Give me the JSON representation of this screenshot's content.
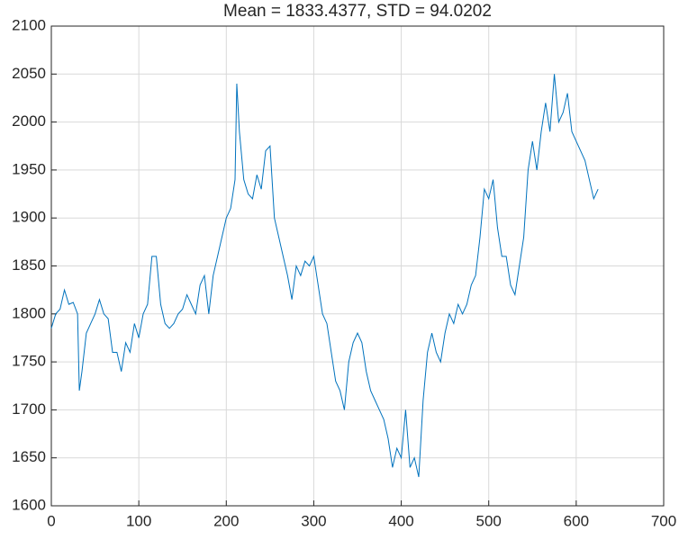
{
  "chart_data": {
    "type": "line",
    "title": "Mean = 1833.4377, STD = 94.0202",
    "x": [
      0,
      5,
      10,
      15,
      20,
      25,
      30,
      32,
      35,
      40,
      45,
      50,
      55,
      60,
      65,
      70,
      75,
      80,
      85,
      90,
      95,
      100,
      105,
      110,
      115,
      120,
      125,
      130,
      135,
      140,
      145,
      150,
      155,
      160,
      165,
      170,
      175,
      180,
      185,
      190,
      195,
      200,
      205,
      210,
      212,
      215,
      220,
      225,
      230,
      235,
      240,
      245,
      250,
      255,
      260,
      265,
      270,
      275,
      280,
      285,
      290,
      295,
      300,
      305,
      310,
      315,
      320,
      325,
      330,
      335,
      340,
      345,
      350,
      355,
      360,
      365,
      370,
      375,
      380,
      385,
      390,
      395,
      400,
      405,
      410,
      415,
      420,
      425,
      430,
      435,
      440,
      445,
      450,
      455,
      460,
      465,
      470,
      475,
      480,
      485,
      490,
      495,
      500,
      505,
      510,
      515,
      520,
      525,
      530,
      535,
      540,
      545,
      550,
      555,
      560,
      565,
      570,
      575,
      580,
      585,
      590,
      595,
      600,
      605,
      610,
      615,
      620,
      625
    ],
    "series": [
      {
        "color": "#0072bd",
        "values": [
          1785,
          1800,
          1805,
          1825,
          1810,
          1812,
          1800,
          1720,
          1740,
          1780,
          1790,
          1800,
          1815,
          1800,
          1795,
          1760,
          1760,
          1740,
          1770,
          1760,
          1790,
          1775,
          1800,
          1810,
          1860,
          1860,
          1810,
          1790,
          1785,
          1790,
          1800,
          1805,
          1820,
          1810,
          1800,
          1830,
          1840,
          1800,
          1840,
          1860,
          1880,
          1900,
          1910,
          1940,
          2040,
          1990,
          1940,
          1925,
          1920,
          1945,
          1930,
          1970,
          1975,
          1900,
          1880,
          1860,
          1840,
          1815,
          1850,
          1840,
          1855,
          1850,
          1860,
          1830,
          1800,
          1790,
          1760,
          1730,
          1720,
          1700,
          1750,
          1770,
          1780,
          1770,
          1740,
          1720,
          1710,
          1700,
          1690,
          1670,
          1640,
          1660,
          1650,
          1700,
          1640,
          1650,
          1630,
          1710,
          1760,
          1780,
          1760,
          1750,
          1780,
          1800,
          1790,
          1810,
          1800,
          1810,
          1830,
          1840,
          1880,
          1930,
          1920,
          1940,
          1890,
          1860,
          1860,
          1830,
          1820,
          1850,
          1880,
          1950,
          1980,
          1950,
          1990,
          2020,
          1990,
          2050,
          2000,
          2010,
          2030,
          1990,
          1980,
          1970,
          1960,
          1940,
          1920,
          1930
        ]
      }
    ],
    "xlim": [
      0,
      700
    ],
    "xticks": [
      0,
      100,
      200,
      300,
      400,
      500,
      600,
      700
    ],
    "ylim": [
      1600,
      2100
    ],
    "yticks": [
      1600,
      1650,
      1700,
      1750,
      1800,
      1850,
      1900,
      1950,
      2000,
      2050,
      2100
    ],
    "grid": true
  }
}
